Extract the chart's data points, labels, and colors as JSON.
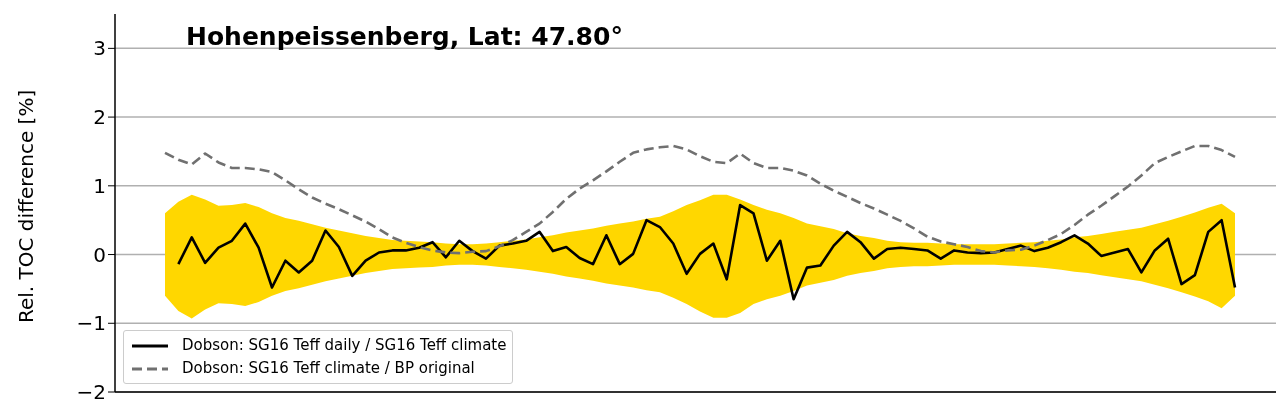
{
  "chart_data": {
    "type": "line",
    "title": "Hohenpeissenberg, Lat: 47.80°",
    "ylabel": "Rel. TOC difference [%]",
    "categories": [
      null,
      null,
      null,
      null,
      null,
      null,
      null,
      null,
      null,
      null,
      null,
      null,
      null,
      null,
      null,
      null,
      null,
      null,
      null,
      null,
      null,
      null,
      null,
      null,
      null,
      null,
      null,
      null,
      null,
      null,
      null,
      null,
      null,
      null,
      null,
      null,
      null,
      null,
      null,
      null,
      null,
      null,
      null,
      null,
      null,
      null,
      null,
      null,
      null,
      null,
      null,
      null,
      null,
      null,
      null,
      null,
      null,
      null,
      null,
      null,
      null,
      null,
      null,
      null,
      null,
      null,
      null,
      null,
      null,
      null,
      null,
      null,
      null,
      null,
      null,
      null,
      null,
      null,
      null,
      null,
      null
    ],
    "ylim": [
      -2,
      3.5
    ],
    "yticks": [
      {
        "value": -2,
        "label": "−2"
      },
      {
        "value": -1,
        "label": "−1"
      },
      0,
      1,
      2,
      3
    ],
    "grid": "y",
    "legend": "bottom left",
    "series": [
      {
        "name": "Dobson: SG16 Teff daily / SG16 Teff climate",
        "color": "#000000",
        "line_style": "solid",
        "values": [
          null,
          -0.14,
          0.25,
          -0.12,
          0.1,
          0.2,
          0.45,
          0.1,
          -0.48,
          -0.09,
          -0.26,
          -0.09,
          0.35,
          0.11,
          -0.31,
          -0.09,
          0.03,
          0.06,
          0.06,
          0.1,
          0.18,
          -0.04,
          0.2,
          0.05,
          -0.06,
          0.13,
          0.16,
          0.2,
          0.33,
          0.05,
          0.11,
          -0.05,
          -0.14,
          0.28,
          -0.14,
          0.01,
          0.5,
          0.4,
          0.16,
          -0.28,
          0.01,
          0.16,
          -0.36,
          0.72,
          0.6,
          -0.09,
          0.2,
          -0.65,
          -0.19,
          -0.16,
          0.13,
          0.33,
          0.18,
          -0.06,
          0.08,
          0.1,
          0.08,
          0.06,
          -0.06,
          0.06,
          0.03,
          0.02,
          0.03,
          0.08,
          0.13,
          0.05,
          0.1,
          0.18,
          0.28,
          0.16,
          -0.02,
          0.03,
          0.08,
          -0.26,
          0.06,
          0.23,
          -0.43,
          -0.3,
          0.33,
          0.5,
          -0.48
        ],
        "upper": [
          0.6,
          0.77,
          0.87,
          0.8,
          0.71,
          0.72,
          0.75,
          0.69,
          0.6,
          0.53,
          0.49,
          0.44,
          0.39,
          0.35,
          0.31,
          0.27,
          0.24,
          0.21,
          0.2,
          0.19,
          0.18,
          0.16,
          0.15,
          0.15,
          0.16,
          0.18,
          0.2,
          0.22,
          0.25,
          0.28,
          0.32,
          0.35,
          0.38,
          0.42,
          0.45,
          0.48,
          0.52,
          0.55,
          0.63,
          0.72,
          0.79,
          0.87,
          0.87,
          0.8,
          0.72,
          0.65,
          0.6,
          0.53,
          0.45,
          0.41,
          0.37,
          0.31,
          0.27,
          0.24,
          0.2,
          0.18,
          0.17,
          0.17,
          0.16,
          0.15,
          0.15,
          0.15,
          0.15,
          0.16,
          0.17,
          0.18,
          0.2,
          0.22,
          0.25,
          0.27,
          0.3,
          0.33,
          0.36,
          0.39,
          0.44,
          0.49,
          0.55,
          0.61,
          0.68,
          0.74,
          0.6
        ],
        "lower": [
          -0.6,
          -0.82,
          -0.93,
          -0.8,
          -0.71,
          -0.72,
          -0.75,
          -0.69,
          -0.6,
          -0.53,
          -0.49,
          -0.44,
          -0.39,
          -0.35,
          -0.31,
          -0.27,
          -0.24,
          -0.21,
          -0.2,
          -0.19,
          -0.18,
          -0.16,
          -0.15,
          -0.15,
          -0.16,
          -0.18,
          -0.2,
          -0.22,
          -0.25,
          -0.28,
          -0.32,
          -0.35,
          -0.38,
          -0.42,
          -0.45,
          -0.48,
          -0.52,
          -0.55,
          -0.63,
          -0.72,
          -0.83,
          -0.92,
          -0.92,
          -0.85,
          -0.72,
          -0.65,
          -0.6,
          -0.53,
          -0.45,
          -0.41,
          -0.37,
          -0.31,
          -0.27,
          -0.24,
          -0.2,
          -0.18,
          -0.17,
          -0.17,
          -0.16,
          -0.15,
          -0.15,
          -0.15,
          -0.15,
          -0.16,
          -0.17,
          -0.18,
          -0.2,
          -0.22,
          -0.25,
          -0.27,
          -0.3,
          -0.33,
          -0.36,
          -0.39,
          -0.44,
          -0.49,
          -0.55,
          -0.61,
          -0.68,
          -0.78,
          -0.6
        ]
      },
      {
        "name": "Dobson: SG16 Teff climate / BP original",
        "color": "#707070",
        "line_style": "dashed",
        "values": [
          1.48,
          1.38,
          1.31,
          1.47,
          1.34,
          1.26,
          1.26,
          1.24,
          1.2,
          1.08,
          0.95,
          0.83,
          0.74,
          0.66,
          0.57,
          0.48,
          0.37,
          0.25,
          0.17,
          0.11,
          0.06,
          0.03,
          0.02,
          0.04,
          0.05,
          0.12,
          0.21,
          0.33,
          0.45,
          0.62,
          0.81,
          0.96,
          1.08,
          1.21,
          1.35,
          1.48,
          1.53,
          1.56,
          1.58,
          1.53,
          1.43,
          1.35,
          1.33,
          1.47,
          1.33,
          1.26,
          1.26,
          1.22,
          1.15,
          1.03,
          0.93,
          0.84,
          0.75,
          0.67,
          0.58,
          0.49,
          0.38,
          0.26,
          0.19,
          0.15,
          0.11,
          0.05,
          0.03,
          0.06,
          0.07,
          0.13,
          0.21,
          0.3,
          0.43,
          0.58,
          0.71,
          0.85,
          0.99,
          1.15,
          1.33,
          1.42,
          1.5,
          1.58,
          1.58,
          1.52,
          1.42
        ]
      }
    ]
  }
}
